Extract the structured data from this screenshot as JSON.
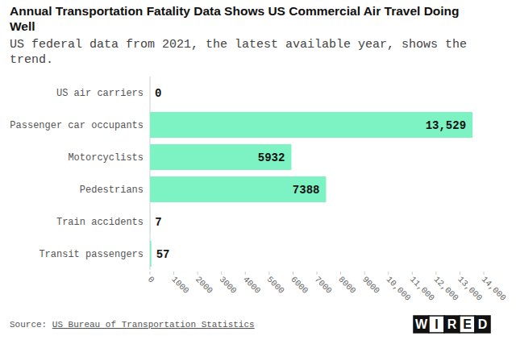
{
  "chart_data": {
    "type": "bar",
    "orientation": "horizontal",
    "title": "Annual Transportation Fatality Data Shows US Commercial Air Travel Doing Well",
    "subtitle": "US federal data from 2021, the latest available year, shows the trend.",
    "categories": [
      "US air carriers",
      "Passenger car occupants",
      "Motorcyclists",
      "Pedestrians",
      "Train accidents",
      "Transit passengers"
    ],
    "values": [
      0,
      13529,
      5932,
      7388,
      7,
      57
    ],
    "value_labels": [
      "0",
      "13,529",
      "5932",
      "7388",
      "7",
      "57"
    ],
    "color": "#7df3c3",
    "data_labels": true,
    "grid": false,
    "xlim": [
      0,
      14000
    ],
    "xticks": [
      0,
      1000,
      2000,
      3000,
      4000,
      5000,
      6000,
      7000,
      8000,
      9000,
      {
        "value": 10000,
        "label": "10,000"
      },
      {
        "value": 11000,
        "label": "11,000"
      },
      {
        "value": 12000,
        "label": "12,000"
      },
      {
        "value": 13000,
        "label": "13,000"
      },
      {
        "value": 14000,
        "label": "14,000"
      }
    ],
    "source_prefix": "Source:",
    "source": "US Bureau of Transportation Statistics",
    "logo": "WIRED"
  }
}
